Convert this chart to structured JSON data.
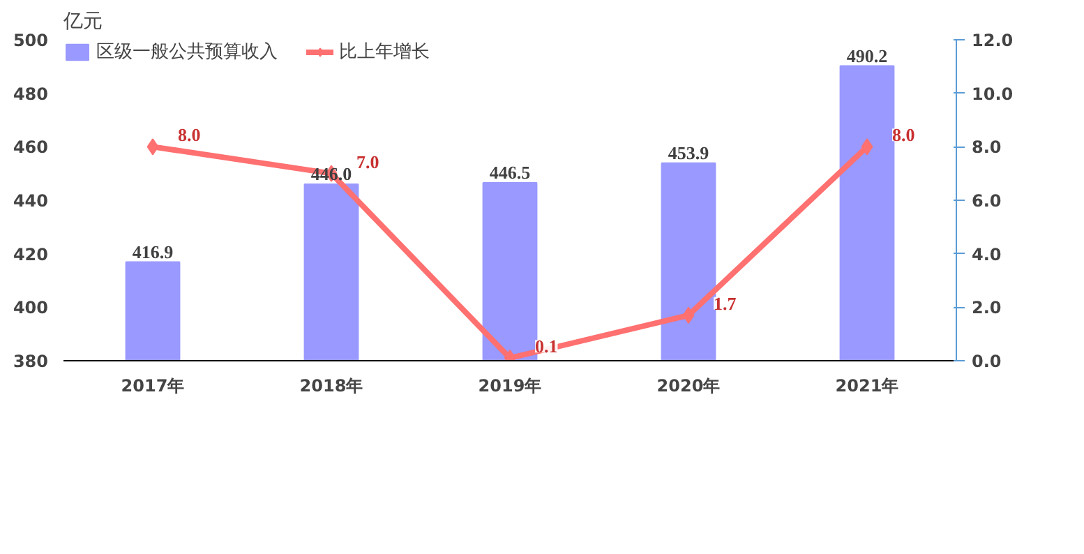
{
  "chart_data": {
    "type": "bar",
    "ylabel": "亿元",
    "categories": [
      "2017年",
      "2018年",
      "2019年",
      "2020年",
      "2021年"
    ],
    "series": [
      {
        "name": "区级一般公共预算收入",
        "color": "#9999ff",
        "values": [
          416.9,
          446.0,
          446.5,
          453.9,
          490.2
        ],
        "value_labels": [
          "416.9",
          "446.0",
          "446.5",
          "453.9",
          "490.2"
        ]
      },
      {
        "name": "比上年增长",
        "type": "line",
        "axis": "y2",
        "color": "#ff7070",
        "marker": "diamond",
        "values": [
          8.0,
          7.0,
          0.1,
          1.7,
          8.0
        ],
        "value_labels": [
          "8.0",
          "7.0",
          "0.1",
          "1.7",
          "8.0"
        ]
      }
    ],
    "ylim": [
      380,
      500
    ],
    "yticks": [
      380,
      400,
      420,
      440,
      460,
      480,
      500
    ],
    "y2lim": [
      0,
      12
    ],
    "y2ticks": [
      {
        "value": 0,
        "label": "0.0"
      },
      {
        "value": 2,
        "label": "2.0"
      },
      {
        "value": 4,
        "label": "4.0"
      },
      {
        "value": 6,
        "label": "6.0"
      },
      {
        "value": 8,
        "label": "8.0"
      },
      {
        "value": 10,
        "label": "10.0"
      },
      {
        "value": 12,
        "label": "12.0"
      }
    ],
    "data_labels": true,
    "legend": "top left",
    "grid": false
  }
}
